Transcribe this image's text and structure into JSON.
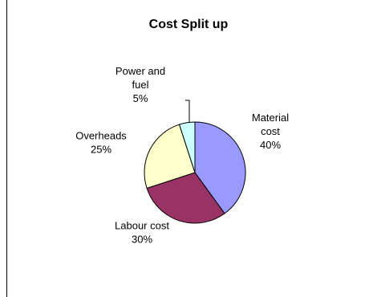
{
  "chart_data": {
    "type": "pie",
    "title": "Cost Split up",
    "slices": [
      {
        "label": [
          "Material",
          "cost"
        ],
        "value": 40,
        "display": "40%",
        "color": "#9999FF"
      },
      {
        "label": [
          "Labour cost"
        ],
        "value": 30,
        "display": "30%",
        "color": "#993366"
      },
      {
        "label": [
          "Overheads"
        ],
        "value": 25,
        "display": "25%",
        "color": "#FFFFCC"
      },
      {
        "label": [
          "Power and",
          "fuel"
        ],
        "value": 5,
        "display": "5%",
        "color": "#CCFFFF"
      }
    ],
    "legend": "none"
  }
}
